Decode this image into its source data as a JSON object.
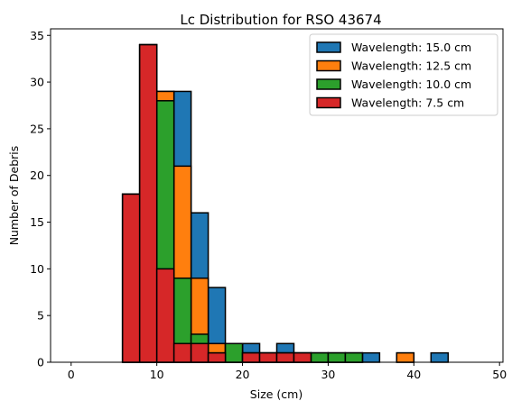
{
  "chart_data": {
    "type": "bar",
    "subtype": "overlaid-histogram",
    "title": "Lc Distribution for RSO 43674",
    "xlabel": "Size (cm)",
    "ylabel": "Number of Debris",
    "xlim": [
      -2.4,
      50.4
    ],
    "ylim": [
      0,
      35.7
    ],
    "xticks": [
      0,
      10,
      20,
      30,
      40,
      50
    ],
    "yticks": [
      0,
      5,
      10,
      15,
      20,
      25,
      30,
      35
    ],
    "bin_edges": [
      0,
      2,
      4,
      6,
      8,
      10,
      12,
      14,
      16,
      18,
      20,
      22,
      24,
      26,
      28,
      30,
      32,
      34,
      36,
      38,
      40,
      42,
      44,
      46,
      48
    ],
    "legend_position": "top-right",
    "grid": false,
    "series": [
      {
        "name": "Wavelength: 15.0 cm",
        "color": "#1f77b4",
        "values": [
          0,
          0,
          0,
          18,
          34,
          29,
          29,
          16,
          8,
          2,
          2,
          1,
          2,
          1,
          1,
          1,
          1,
          1,
          0,
          1,
          0,
          1,
          0,
          0
        ]
      },
      {
        "name": "Wavelength: 12.5 cm",
        "color": "#ff7f0e",
        "values": [
          0,
          0,
          0,
          18,
          34,
          29,
          21,
          9,
          2,
          2,
          1,
          1,
          1,
          1,
          1,
          1,
          1,
          0,
          0,
          1,
          0,
          0,
          0,
          0
        ]
      },
      {
        "name": "Wavelength: 10.0 cm",
        "color": "#2ca02c",
        "values": [
          0,
          0,
          0,
          18,
          34,
          28,
          9,
          3,
          1,
          2,
          1,
          1,
          1,
          1,
          1,
          1,
          1,
          0,
          0,
          0,
          0,
          0,
          0,
          0
        ]
      },
      {
        "name": "Wavelength: 7.5 cm",
        "color": "#d62728",
        "values": [
          0,
          0,
          0,
          18,
          34,
          10,
          2,
          2,
          1,
          0,
          1,
          1,
          1,
          1,
          0,
          0,
          0,
          0,
          0,
          0,
          0,
          0,
          0,
          0
        ]
      }
    ]
  }
}
